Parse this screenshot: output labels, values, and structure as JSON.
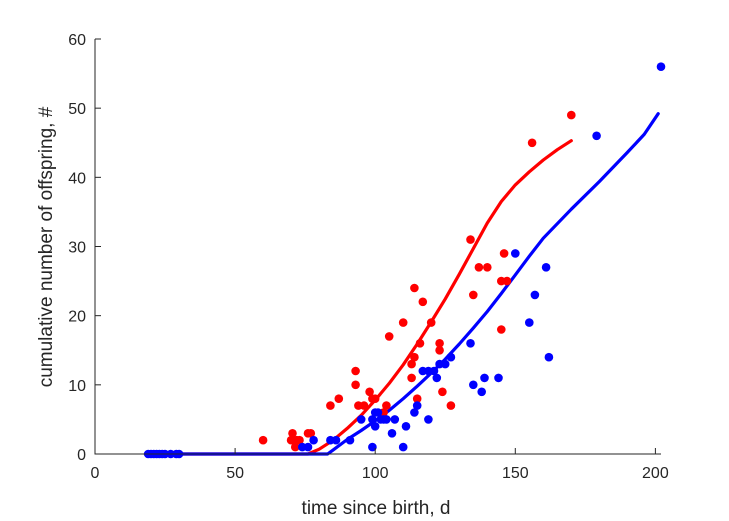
{
  "chart_data": {
    "type": "scatter",
    "title": "",
    "xlabel": "time since birth, d",
    "ylabel": "cumulative number of offspring, #",
    "xlim": [
      0,
      202
    ],
    "ylim": [
      0,
      60
    ],
    "xticks": [
      0,
      50,
      100,
      150,
      200
    ],
    "yticks": [
      0,
      10,
      20,
      30,
      40,
      50,
      60
    ],
    "grid": false,
    "legend": "none",
    "series": [
      {
        "color": "#ff0000",
        "points": [
          [
            60,
            2
          ],
          [
            70,
            2
          ],
          [
            70.5,
            3
          ],
          [
            71,
            2
          ],
          [
            71.5,
            1
          ],
          [
            72,
            2
          ],
          [
            73,
            2
          ],
          [
            76,
            3
          ],
          [
            77,
            3
          ],
          [
            84,
            7
          ],
          [
            87,
            8
          ],
          [
            93,
            12
          ],
          [
            93,
            10
          ],
          [
            94,
            7
          ],
          [
            96,
            7
          ],
          [
            98,
            9
          ],
          [
            99,
            8
          ],
          [
            100,
            8
          ],
          [
            103,
            6
          ],
          [
            104,
            7
          ],
          [
            105,
            17
          ],
          [
            110,
            19
          ],
          [
            113,
            11
          ],
          [
            113,
            13
          ],
          [
            114,
            14
          ],
          [
            114,
            24
          ],
          [
            115,
            8
          ],
          [
            116,
            16
          ],
          [
            117,
            22
          ],
          [
            120,
            19
          ],
          [
            123,
            16
          ],
          [
            123,
            15
          ],
          [
            124,
            9
          ],
          [
            127,
            7
          ],
          [
            134,
            31
          ],
          [
            135,
            23
          ],
          [
            137,
            27
          ],
          [
            140,
            27
          ],
          [
            145,
            25
          ],
          [
            145,
            18
          ],
          [
            146,
            29
          ],
          [
            147,
            25
          ],
          [
            156,
            45
          ],
          [
            170,
            49
          ]
        ],
        "curve": [
          [
            18,
            0
          ],
          [
            30,
            0
          ],
          [
            40,
            0
          ],
          [
            50,
            0
          ],
          [
            60,
            0
          ],
          [
            70,
            0
          ],
          [
            76,
            0
          ],
          [
            80,
            0.7
          ],
          [
            85,
            2.0
          ],
          [
            90,
            3.7
          ],
          [
            95,
            5.6
          ],
          [
            100,
            7.8
          ],
          [
            105,
            10.2
          ],
          [
            110,
            12.9
          ],
          [
            115,
            15.9
          ],
          [
            120,
            19.1
          ],
          [
            125,
            22.4
          ],
          [
            130,
            26.0
          ],
          [
            135,
            29.7
          ],
          [
            140,
            33.4
          ],
          [
            145,
            36.5
          ],
          [
            150,
            38.9
          ],
          [
            155,
            40.8
          ],
          [
            160,
            42.5
          ],
          [
            165,
            44.0
          ],
          [
            170,
            45.3
          ]
        ]
      },
      {
        "color": "#0000ff",
        "points": [
          [
            19,
            0
          ],
          [
            20,
            0
          ],
          [
            21,
            0
          ],
          [
            22,
            0
          ],
          [
            23,
            0
          ],
          [
            24,
            0
          ],
          [
            25,
            0
          ],
          [
            27,
            0
          ],
          [
            29,
            0
          ],
          [
            30,
            0
          ],
          [
            74,
            1
          ],
          [
            76,
            1
          ],
          [
            78,
            2
          ],
          [
            84,
            2
          ],
          [
            86,
            2
          ],
          [
            91,
            2
          ],
          [
            95,
            5
          ],
          [
            99,
            1
          ],
          [
            99,
            5
          ],
          [
            100,
            4
          ],
          [
            100,
            6
          ],
          [
            101,
            6
          ],
          [
            102,
            5
          ],
          [
            103,
            5
          ],
          [
            104,
            5
          ],
          [
            106,
            3
          ],
          [
            107,
            5
          ],
          [
            110,
            1
          ],
          [
            111,
            4
          ],
          [
            114,
            6
          ],
          [
            115,
            7
          ],
          [
            117,
            12
          ],
          [
            119,
            12
          ],
          [
            119,
            5
          ],
          [
            121,
            12
          ],
          [
            122,
            11
          ],
          [
            123,
            13
          ],
          [
            125,
            13
          ],
          [
            127,
            14
          ],
          [
            134,
            16
          ],
          [
            135,
            10
          ],
          [
            138,
            9
          ],
          [
            139,
            11
          ],
          [
            144,
            11
          ],
          [
            150,
            29
          ],
          [
            155,
            19
          ],
          [
            157,
            23
          ],
          [
            161,
            27
          ],
          [
            162,
            14
          ],
          [
            179,
            46
          ],
          [
            202,
            56
          ]
        ],
        "curve": [
          [
            18,
            0
          ],
          [
            30,
            0
          ],
          [
            40,
            0
          ],
          [
            50,
            0
          ],
          [
            60,
            0
          ],
          [
            70,
            0
          ],
          [
            80,
            0
          ],
          [
            83,
            0
          ],
          [
            85,
            0.6
          ],
          [
            90,
            2.1
          ],
          [
            95,
            3.4
          ],
          [
            100,
            4.8
          ],
          [
            105,
            6.3
          ],
          [
            110,
            8.0
          ],
          [
            115,
            9.8
          ],
          [
            120,
            11.7
          ],
          [
            125,
            13.7
          ],
          [
            130,
            15.9
          ],
          [
            135,
            18.2
          ],
          [
            140,
            20.6
          ],
          [
            145,
            23.2
          ],
          [
            150,
            25.9
          ],
          [
            155,
            28.6
          ],
          [
            160,
            31.2
          ],
          [
            170,
            35.4
          ],
          [
            180,
            39.4
          ],
          [
            190,
            43.6
          ],
          [
            196,
            46.2
          ],
          [
            201,
            49.2
          ]
        ]
      }
    ]
  }
}
